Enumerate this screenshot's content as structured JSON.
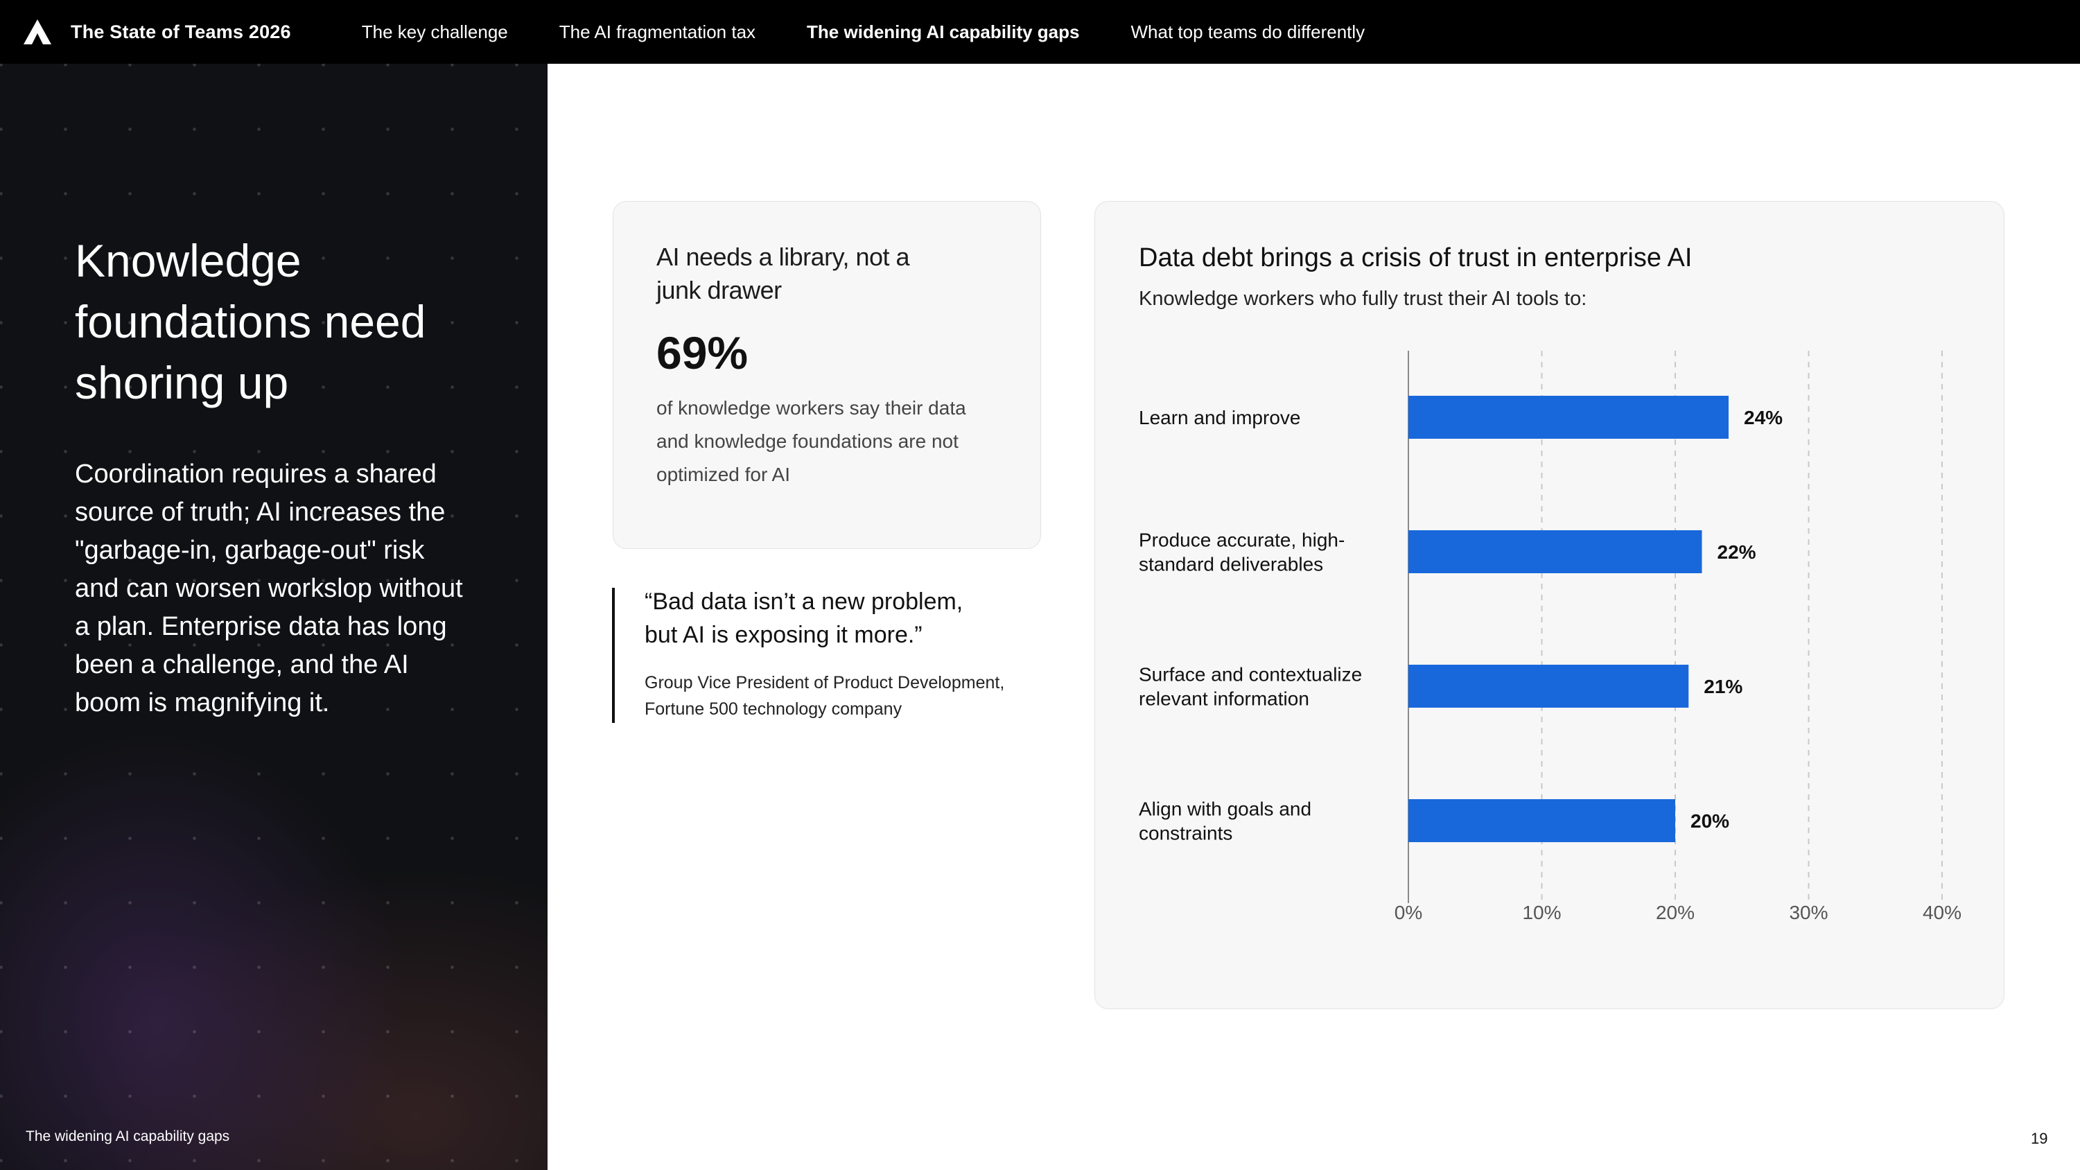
{
  "header": {
    "brand_title": "The State of Teams 2026",
    "logo_icon": "triangle-logo-icon",
    "nav_items": [
      {
        "label": "The key challenge",
        "active": false
      },
      {
        "label": "The AI fragmentation tax",
        "active": false
      },
      {
        "label": "The widening AI capability gaps",
        "active": true
      },
      {
        "label": "What top teams do differently",
        "active": false
      }
    ]
  },
  "left_panel": {
    "heading_lines": [
      "Knowledge",
      "foundations need",
      "shoring up"
    ],
    "body_lines": [
      "Coordination requires a shared",
      "source of truth; AI increases the",
      "\"garbage-in, garbage-out\" risk",
      "and can worsen workslop without",
      "a plan. Enterprise data has long",
      "been a challenge, and the AI",
      "boom is magnifying it."
    ],
    "footer": "The widening AI capability gaps"
  },
  "stat_card": {
    "title_lines": [
      "AI needs a library, not a",
      "junk drawer"
    ],
    "value": "69%",
    "description_lines": [
      "of knowledge workers say their data",
      "and knowledge foundations are not",
      "optimized for AI"
    ]
  },
  "quote": {
    "text_lines": [
      "“Bad data isn’t a new problem,",
      "but AI is exposing it more.”"
    ],
    "source_lines": [
      "Group Vice President of Product Development,",
      "Fortune 500 technology company"
    ]
  },
  "chart_card": {
    "title": "Data debt brings a crisis of trust in enterprise AI",
    "subtitle": "Knowledge workers who fully trust their AI tools to:"
  },
  "chart_data": {
    "type": "bar",
    "orientation": "horizontal",
    "title": "Data debt brings a crisis of trust in enterprise AI",
    "subtitle": "Knowledge workers who fully trust their AI tools to:",
    "categories": [
      [
        "Learn and improve"
      ],
      [
        "Produce accurate, high-",
        "standard deliverables"
      ],
      [
        "Surface and contextualize",
        "relevant information"
      ],
      [
        "Align with goals and",
        "constraints"
      ]
    ],
    "values": [
      24,
      22,
      21,
      20
    ],
    "value_labels": [
      "24%",
      "22%",
      "21%",
      "20%"
    ],
    "xlim": [
      0,
      40
    ],
    "ticks": [
      0,
      10,
      20,
      30,
      40
    ],
    "tick_labels": [
      "0%",
      "10%",
      "20%",
      "30%",
      "40%"
    ],
    "grid": "vertical dashed",
    "bar_color": "#1868db"
  },
  "page_number": "19",
  "colors": {
    "nav_background": "#000000",
    "panel_background": "#101114",
    "bar": "#1868db",
    "card_background": "#f7f7f7"
  }
}
